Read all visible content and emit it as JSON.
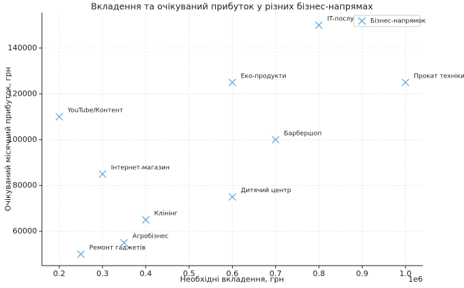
{
  "chart_data": {
    "type": "scatter",
    "title": "Вкладення та очікуваний прибуток у різних бізнес-напрямах",
    "xlabel": "Необхідні вкладення, грн",
    "ylabel": "Очікуваний місячний прибуток, грн",
    "x_offset_label": "1e6",
    "series": [
      {
        "name": "Бізнес-напрямок",
        "color": "#5dade2",
        "x": [
          0.2,
          0.25,
          0.3,
          0.35,
          0.4,
          0.6,
          0.6,
          0.7,
          0.8,
          1.0
        ],
        "values": [
          110000,
          50000,
          85000,
          55000,
          65000,
          125000,
          75000,
          100000,
          150000,
          125000
        ],
        "labels": [
          "YouTube/Контент",
          "Ремонт гаджетів",
          "Інтернет-магазин",
          "Агробізнес",
          "Клінінг",
          "Еко-продукти",
          "Дитячий центр",
          "Барбершоп",
          "IT-послуги",
          "Прокат техніки"
        ]
      }
    ],
    "xlim": [
      0.16,
      1.04
    ],
    "ylim": [
      45000,
      155500
    ],
    "xticks": [
      0.2,
      0.3,
      0.4,
      0.5,
      0.6,
      0.7,
      0.8,
      0.9,
      {
        "value": 1,
        "label": "1.0"
      }
    ],
    "yticks": [
      60000,
      80000,
      100000,
      120000,
      140000
    ],
    "grid": true,
    "legend": "upper right"
  }
}
